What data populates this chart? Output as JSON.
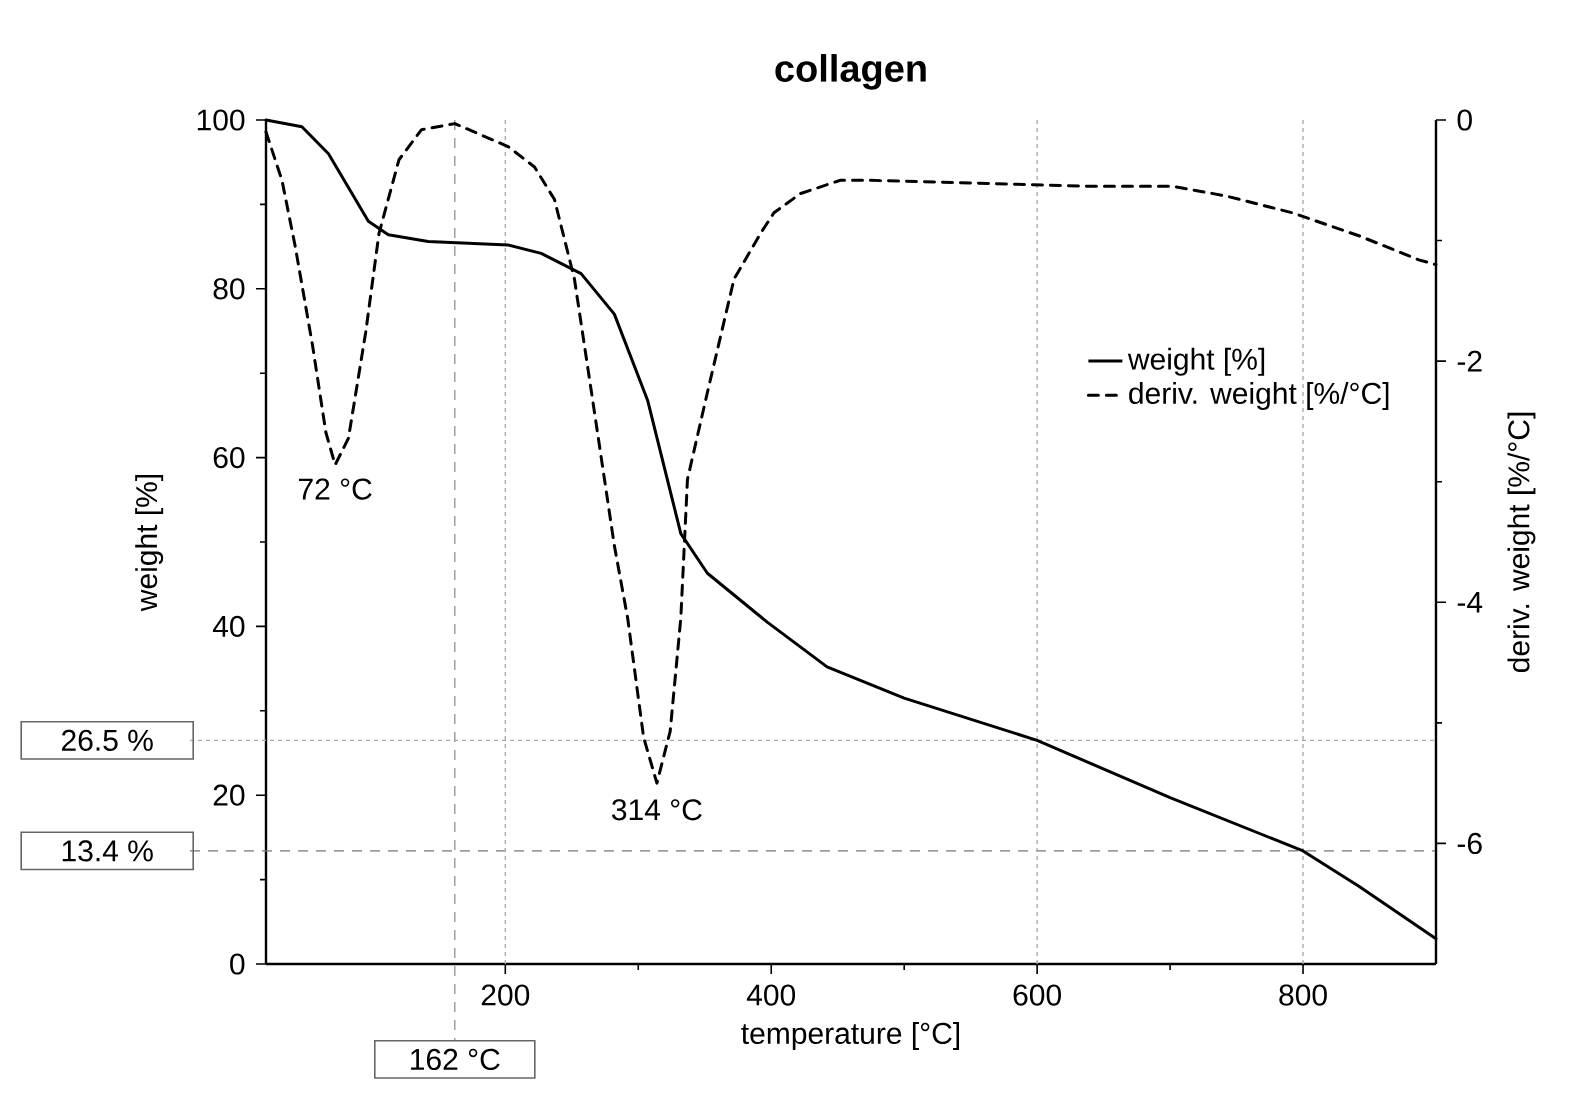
{
  "chart_data": {
    "type": "line",
    "title": "collagen",
    "xlabel": "temperature [°C]",
    "ylabel": "weight [%]",
    "y2label": "deriv. weight [%/°C]",
    "xlim": [
      20,
      900
    ],
    "xticks": [
      200,
      400,
      600,
      800
    ],
    "ylim": [
      0,
      100
    ],
    "yticks": [
      0,
      20,
      40,
      60,
      80,
      100
    ],
    "y2lim": [
      -7,
      0
    ],
    "y2ticks": [
      0,
      -2,
      -4,
      -6
    ],
    "legend": "right",
    "grid": false,
    "marker": "none",
    "series": [
      {
        "name": "weight [%]",
        "color": "#000000",
        "axis": "y",
        "line_style": "solid",
        "x": [
          20,
          47,
          67,
          82,
          97,
          112,
          142,
          202,
          227,
          257,
          282,
          307,
          332,
          352,
          397,
          442,
          500,
          600,
          700,
          800,
          842,
          900
        ],
        "values": [
          100,
          99.2,
          96,
          92,
          88,
          86.4,
          85.6,
          85.2,
          84.2,
          81.8,
          77,
          66.8,
          51,
          46.3,
          40.5,
          35.2,
          31.5,
          26.5,
          19.7,
          13.4,
          9.2,
          3
        ]
      },
      {
        "name": "deriv. weight [%/°C]",
        "color": "#000000",
        "axis": "y2",
        "line_style": "dashed",
        "x": [
          20,
          32,
          42,
          55,
          65,
          72,
          82,
          95,
          105,
          120,
          137,
          162,
          202,
          222,
          237,
          252,
          267,
          282,
          292,
          304,
          314,
          324,
          332,
          337,
          352,
          372,
          392,
          402,
          422,
          452,
          472,
          542,
          642,
          702,
          742,
          792,
          842,
          887,
          900
        ],
        "values": [
          -0.1,
          -0.5,
          -1.05,
          -1.87,
          -2.59,
          -2.86,
          -2.64,
          -1.76,
          -0.94,
          -0.33,
          -0.08,
          -0.03,
          -0.22,
          -0.39,
          -0.66,
          -1.32,
          -2.42,
          -3.53,
          -4.13,
          -5.12,
          -5.5,
          -5.07,
          -4.13,
          -2.98,
          -2.26,
          -1.32,
          -0.94,
          -0.77,
          -0.61,
          -0.5,
          -0.5,
          -0.52,
          -0.55,
          -0.55,
          -0.63,
          -0.77,
          -0.96,
          -1.16,
          -1.2
        ]
      }
    ],
    "ref_lines": [
      {
        "axis": "y",
        "value": 26.5,
        "label": "26.5 %",
        "color": "#aaaaaa",
        "line_style": "dotted"
      },
      {
        "axis": "y",
        "value": 13.4,
        "label": "13.4 %",
        "color": "#777777",
        "line_style": "dashed"
      },
      {
        "axis": "x",
        "value": 162,
        "label": "162 °C",
        "color": "#999999",
        "line_style": "dashed"
      },
      {
        "axis": "x",
        "value": 200,
        "color": "#aaaaaa",
        "line_style": "dotted"
      },
      {
        "axis": "x",
        "value": 600,
        "color": "#aaaaaa",
        "line_style": "dotted"
      },
      {
        "axis": "x",
        "value": 800,
        "color": "#aaaaaa",
        "line_style": "dotted"
      }
    ],
    "annotations": [
      {
        "text": "72 °C",
        "x": 72,
        "y": 59
      },
      {
        "text": "314 °C",
        "x": 314,
        "y": 21
      }
    ]
  }
}
